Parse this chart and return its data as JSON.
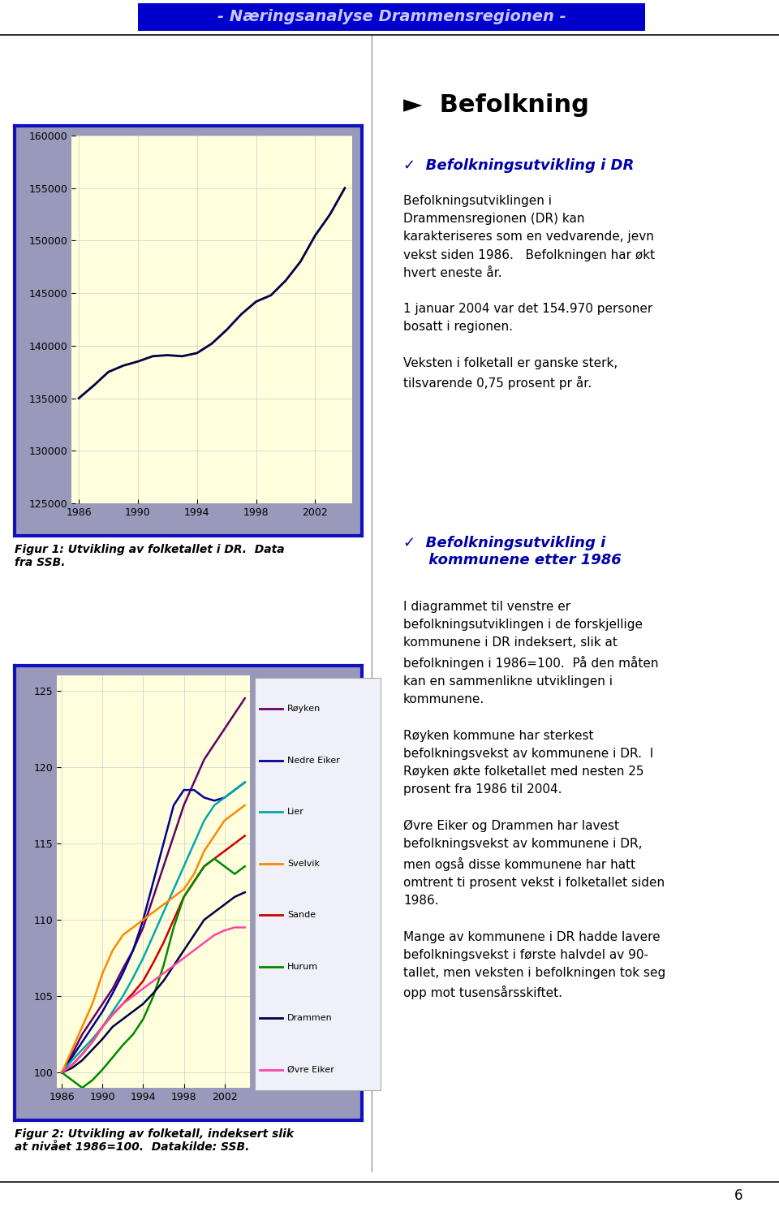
{
  "page_bg": "#ffffff",
  "header_bg": "#0000cc",
  "header_text": "- Næringsanalyse Drammensregionen -",
  "header_text_color": "#c8c8ff",
  "divider_color": "#000000",
  "page_number": "6",
  "chart1": {
    "years": [
      1986,
      1987,
      1988,
      1989,
      1990,
      1991,
      1992,
      1993,
      1994,
      1995,
      1996,
      1997,
      1998,
      1999,
      2000,
      2001,
      2002,
      2003,
      2004
    ],
    "values": [
      135000,
      136200,
      137500,
      138100,
      138500,
      139000,
      139100,
      139000,
      139300,
      140200,
      141500,
      143000,
      144200,
      144800,
      146200,
      148000,
      150500,
      152500,
      155000
    ],
    "line_color": "#000044",
    "line_width": 2.0,
    "ylim": [
      125000,
      160000
    ],
    "yticks": [
      125000,
      130000,
      135000,
      140000,
      145000,
      150000,
      155000,
      160000
    ],
    "xticks": [
      1986,
      1990,
      1994,
      1998,
      2002
    ],
    "plot_bg": "#ffffdd",
    "outer_bg_top": "#9999bb",
    "outer_bg_bottom": "#bbbbdd",
    "border_color": "#1111bb",
    "caption": "Figur 1: Utvikling av folketallet i DR.  Data\nfra SSB."
  },
  "chart2": {
    "years": [
      1986,
      1987,
      1988,
      1989,
      1990,
      1991,
      1992,
      1993,
      1994,
      1995,
      1996,
      1997,
      1998,
      1999,
      2000,
      2001,
      2002,
      2003,
      2004
    ],
    "series": {
      "Røyken": [
        100,
        101.2,
        102.5,
        103.5,
        104.5,
        105.5,
        106.8,
        108.0,
        109.5,
        111.5,
        113.5,
        115.5,
        117.5,
        119.0,
        120.5,
        121.5,
        122.5,
        123.5,
        124.5
      ],
      "Nedre Eiker": [
        100,
        101.0,
        102.0,
        103.0,
        104.0,
        105.2,
        106.5,
        108.0,
        110.0,
        112.5,
        115.0,
        117.5,
        118.5,
        118.5,
        118.0,
        117.8,
        118.0,
        118.5,
        119.0
      ],
      "Lier": [
        100,
        100.8,
        101.5,
        102.2,
        103.0,
        104.0,
        105.0,
        106.2,
        107.5,
        109.0,
        110.5,
        112.0,
        113.5,
        115.0,
        116.5,
        117.5,
        118.0,
        118.5,
        119.0
      ],
      "Svelvik": [
        100,
        101.5,
        103.0,
        104.5,
        106.5,
        108.0,
        109.0,
        109.5,
        110.0,
        110.5,
        111.0,
        111.5,
        112.0,
        113.0,
        114.5,
        115.5,
        116.5,
        117.0,
        117.5
      ],
      "Sande": [
        100,
        100.5,
        101.2,
        102.0,
        103.0,
        103.8,
        104.5,
        105.2,
        106.0,
        107.2,
        108.5,
        110.0,
        111.5,
        112.5,
        113.5,
        114.0,
        114.5,
        115.0,
        115.5
      ],
      "Hurum": [
        100,
        99.5,
        99.0,
        99.5,
        100.2,
        101.0,
        101.8,
        102.5,
        103.5,
        105.0,
        107.0,
        109.5,
        111.5,
        112.5,
        113.5,
        114.0,
        113.5,
        113.0,
        113.5
      ],
      "Drammen": [
        100,
        100.3,
        100.8,
        101.5,
        102.2,
        103.0,
        103.5,
        104.0,
        104.5,
        105.2,
        106.0,
        107.0,
        108.0,
        109.0,
        110.0,
        110.5,
        111.0,
        111.5,
        111.8
      ],
      "Øvre Eiker": [
        100,
        100.5,
        101.2,
        102.0,
        103.0,
        103.8,
        104.5,
        105.0,
        105.5,
        106.0,
        106.5,
        107.0,
        107.5,
        108.0,
        108.5,
        109.0,
        109.3,
        109.5,
        109.5
      ]
    },
    "colors": {
      "Røyken": "#660066",
      "Nedre Eiker": "#000099",
      "Lier": "#00aaaa",
      "Svelvik": "#ff8800",
      "Sande": "#cc0000",
      "Hurum": "#008800",
      "Drammen": "#000044",
      "Øvre Eiker": "#ff44aa"
    },
    "ylim": [
      99,
      126
    ],
    "yticks": [
      100,
      105,
      110,
      115,
      120,
      125
    ],
    "xticks": [
      1986,
      1990,
      1994,
      1998,
      2002
    ],
    "plot_bg": "#ffffdd",
    "border_color": "#1111bb",
    "caption": "Figur 2: Utvikling av folketall, indeksert slik\nat nivået 1986=100.  Datakilde: SSB."
  }
}
